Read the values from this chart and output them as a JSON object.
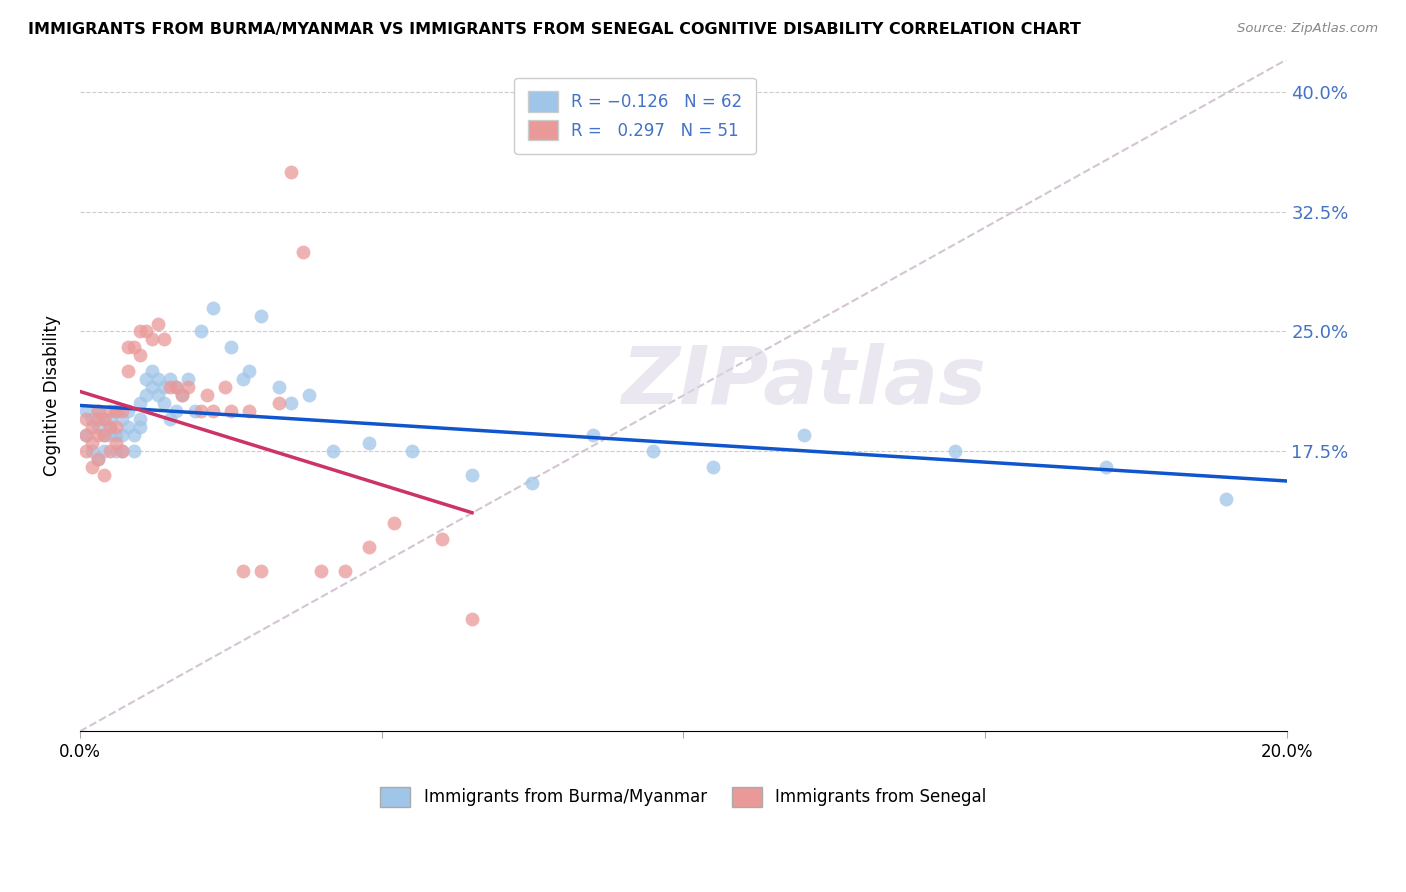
{
  "title": "IMMIGRANTS FROM BURMA/MYANMAR VS IMMIGRANTS FROM SENEGAL COGNITIVE DISABILITY CORRELATION CHART",
  "source": "Source: ZipAtlas.com",
  "xlabel_label": "Immigrants from Burma/Myanmar",
  "ylabel_label": "Cognitive Disability",
  "xlim": [
    0.0,
    0.2
  ],
  "ylim": [
    0.0,
    0.42
  ],
  "yticks": [
    0.175,
    0.25,
    0.325,
    0.4
  ],
  "ytick_labels": [
    "17.5%",
    "25.0%",
    "32.5%",
    "40.0%"
  ],
  "xticks": [
    0.0,
    0.05,
    0.1,
    0.15,
    0.2
  ],
  "xtick_labels": [
    "0.0%",
    "",
    "",
    "",
    "20.0%"
  ],
  "R_burma": -0.126,
  "N_burma": 62,
  "R_senegal": 0.297,
  "N_senegal": 51,
  "color_burma": "#9fc5e8",
  "color_senegal": "#ea9999",
  "line_color_burma": "#1155cc",
  "line_color_senegal": "#cc3366",
  "diagonal_color": "#ccbbcc",
  "watermark": "ZIPatlas",
  "background_color": "#ffffff",
  "burma_x": [
    0.001,
    0.001,
    0.002,
    0.002,
    0.003,
    0.003,
    0.003,
    0.004,
    0.004,
    0.004,
    0.005,
    0.005,
    0.005,
    0.006,
    0.006,
    0.006,
    0.007,
    0.007,
    0.007,
    0.008,
    0.008,
    0.009,
    0.009,
    0.01,
    0.01,
    0.01,
    0.011,
    0.011,
    0.012,
    0.012,
    0.013,
    0.013,
    0.014,
    0.014,
    0.015,
    0.015,
    0.016,
    0.016,
    0.017,
    0.018,
    0.019,
    0.02,
    0.022,
    0.025,
    0.027,
    0.028,
    0.03,
    0.033,
    0.035,
    0.038,
    0.042,
    0.048,
    0.055,
    0.065,
    0.075,
    0.085,
    0.095,
    0.105,
    0.12,
    0.145,
    0.17,
    0.19
  ],
  "burma_y": [
    0.2,
    0.185,
    0.195,
    0.175,
    0.19,
    0.2,
    0.17,
    0.195,
    0.185,
    0.175,
    0.19,
    0.185,
    0.195,
    0.2,
    0.185,
    0.175,
    0.195,
    0.185,
    0.175,
    0.2,
    0.19,
    0.185,
    0.175,
    0.205,
    0.195,
    0.19,
    0.22,
    0.21,
    0.225,
    0.215,
    0.22,
    0.21,
    0.215,
    0.205,
    0.22,
    0.195,
    0.215,
    0.2,
    0.21,
    0.22,
    0.2,
    0.25,
    0.265,
    0.24,
    0.22,
    0.225,
    0.26,
    0.215,
    0.205,
    0.21,
    0.175,
    0.18,
    0.175,
    0.16,
    0.155,
    0.185,
    0.175,
    0.165,
    0.185,
    0.175,
    0.165,
    0.145
  ],
  "senegal_x": [
    0.001,
    0.001,
    0.001,
    0.002,
    0.002,
    0.002,
    0.003,
    0.003,
    0.003,
    0.003,
    0.004,
    0.004,
    0.004,
    0.005,
    0.005,
    0.005,
    0.006,
    0.006,
    0.006,
    0.007,
    0.007,
    0.008,
    0.008,
    0.009,
    0.01,
    0.01,
    0.011,
    0.012,
    0.013,
    0.014,
    0.015,
    0.016,
    0.017,
    0.018,
    0.02,
    0.021,
    0.022,
    0.024,
    0.025,
    0.027,
    0.028,
    0.03,
    0.033,
    0.035,
    0.037,
    0.04,
    0.044,
    0.048,
    0.052,
    0.06,
    0.065
  ],
  "senegal_y": [
    0.195,
    0.185,
    0.175,
    0.19,
    0.18,
    0.165,
    0.2,
    0.195,
    0.185,
    0.17,
    0.195,
    0.185,
    0.16,
    0.2,
    0.19,
    0.175,
    0.2,
    0.19,
    0.18,
    0.2,
    0.175,
    0.24,
    0.225,
    0.24,
    0.25,
    0.235,
    0.25,
    0.245,
    0.255,
    0.245,
    0.215,
    0.215,
    0.21,
    0.215,
    0.2,
    0.21,
    0.2,
    0.215,
    0.2,
    0.1,
    0.2,
    0.1,
    0.205,
    0.35,
    0.3,
    0.1,
    0.1,
    0.115,
    0.13,
    0.12,
    0.07
  ]
}
